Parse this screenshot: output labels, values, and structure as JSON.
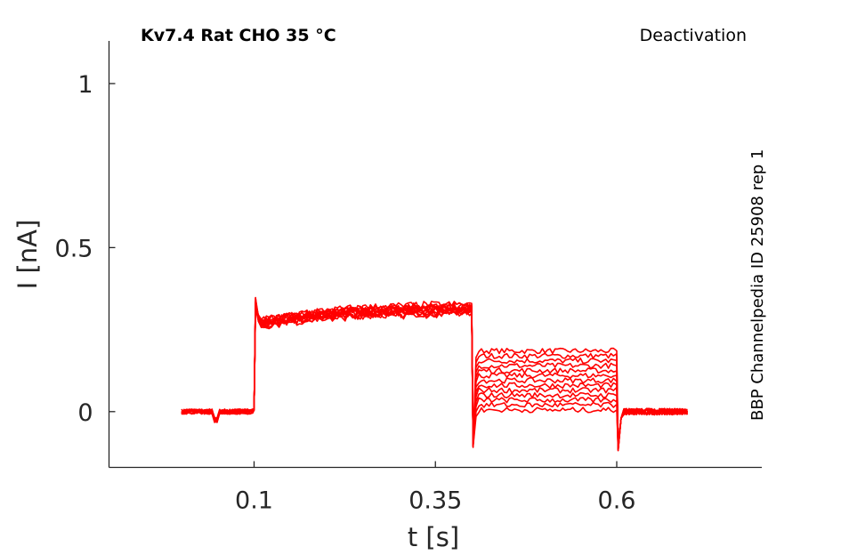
{
  "chart_data": {
    "type": "line",
    "title": "Kv7.4  Rat  CHO  35 °C",
    "protocol": "Deactivation",
    "source": "BBP Channelpedia ID 25908 rep 1",
    "xlabel": "t [s]",
    "ylabel": "I [nA]",
    "xlim": [
      -0.1,
      0.8
    ],
    "ylim": [
      -0.17,
      1.13
    ],
    "xticks": [
      0.1,
      0.35,
      0.6
    ],
    "xtick_labels": [
      "0.1",
      "0.35",
      "0.6"
    ],
    "yticks": [
      0,
      0.5,
      1
    ],
    "ytick_labels": [
      "0",
      "0.5",
      "1"
    ],
    "grid": false,
    "series_color": "#ff0000",
    "phases": {
      "baseline_start": 0.0,
      "step_on": 0.1,
      "step_off": 0.4,
      "tail_end": 0.6,
      "trace_end": 0.7
    },
    "traces": [
      {
        "activation_start": 0.27,
        "activation_end": 0.315,
        "tail": 0.185
      },
      {
        "activation_start": 0.265,
        "activation_end": 0.32,
        "tail": 0.17
      },
      {
        "activation_start": 0.26,
        "activation_end": 0.31,
        "tail": 0.155
      },
      {
        "activation_start": 0.27,
        "activation_end": 0.325,
        "tail": 0.14
      },
      {
        "activation_start": 0.255,
        "activation_end": 0.305,
        "tail": 0.125
      },
      {
        "activation_start": 0.265,
        "activation_end": 0.315,
        "tail": 0.11
      },
      {
        "activation_start": 0.275,
        "activation_end": 0.32,
        "tail": 0.095
      },
      {
        "activation_start": 0.26,
        "activation_end": 0.31,
        "tail": 0.08
      },
      {
        "activation_start": 0.27,
        "activation_end": 0.33,
        "tail": 0.065
      },
      {
        "activation_start": 0.255,
        "activation_end": 0.3,
        "tail": 0.05
      },
      {
        "activation_start": 0.265,
        "activation_end": 0.315,
        "tail": 0.035
      },
      {
        "activation_start": 0.27,
        "activation_end": 0.32,
        "tail": 0.02
      },
      {
        "activation_start": 0.26,
        "activation_end": 0.305,
        "tail": 0.005
      }
    ]
  }
}
